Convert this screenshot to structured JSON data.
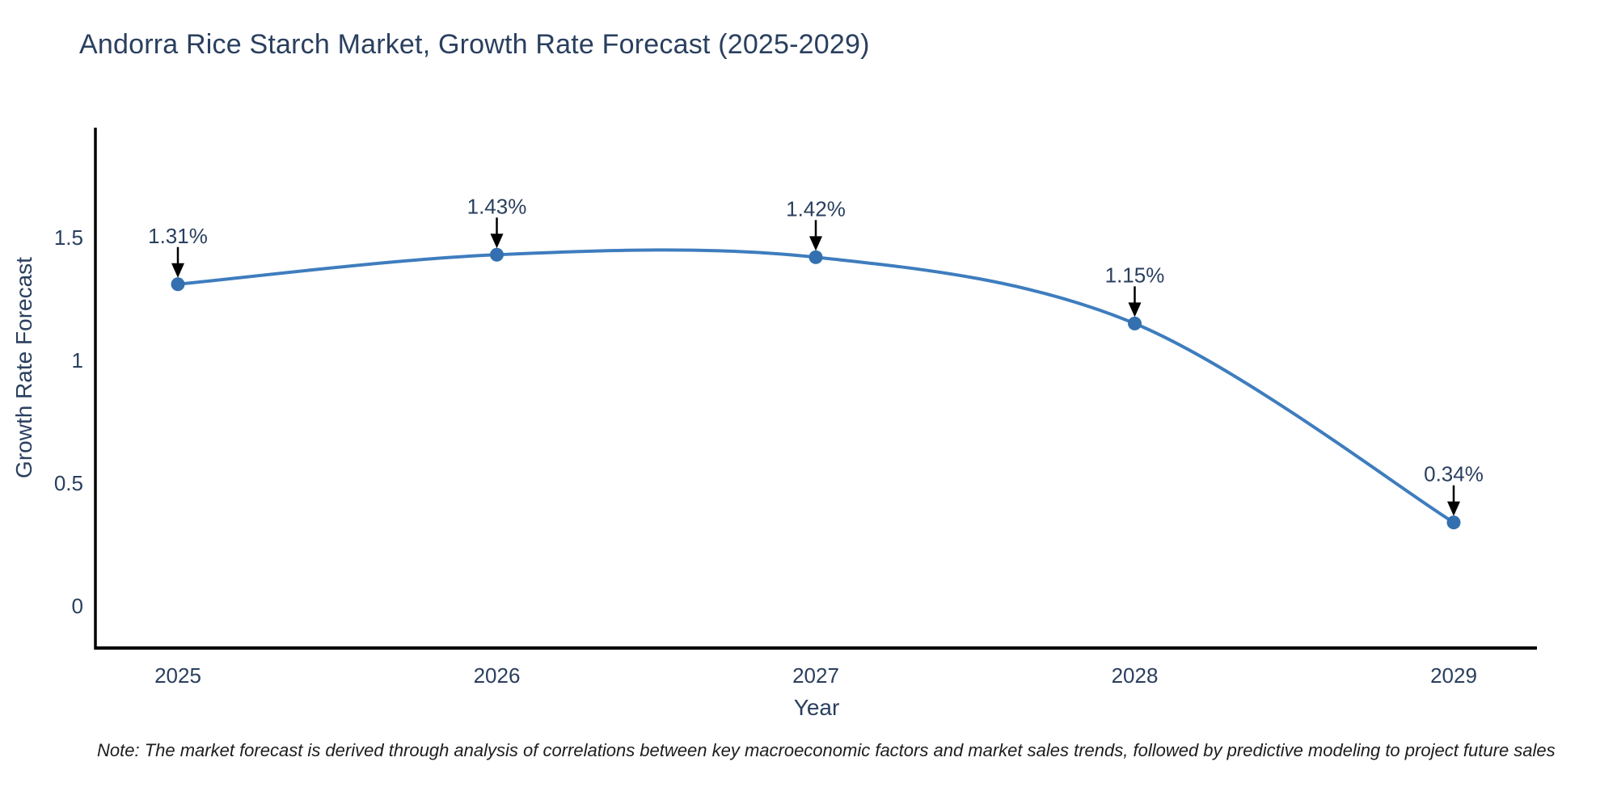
{
  "chart_data": {
    "type": "line",
    "title": "Andorra Rice Starch Market, Growth Rate Forecast (2025-2029)",
    "xlabel": "Year",
    "ylabel": "Growth Rate Forecast",
    "categories": [
      "2025",
      "2026",
      "2027",
      "2028",
      "2029"
    ],
    "values": [
      1.31,
      1.43,
      1.42,
      1.15,
      0.34
    ],
    "point_labels": [
      "1.31%",
      "1.43%",
      "1.42%",
      "1.15%",
      "0.34%"
    ],
    "series_name": "Growth Rate Forecast",
    "y_ticks": [
      0,
      0.5,
      1,
      1.5
    ],
    "y_tick_labels": [
      "0",
      "0.5",
      "1",
      "1.5"
    ],
    "ylim": [
      -0.17,
      1.95
    ],
    "line_shape": "spline",
    "grid": false,
    "legend_position": "none",
    "colors": {
      "line": "#3E7DBE",
      "marker": "#3470AF",
      "axis": "#000000",
      "text": "#2a3f5f",
      "arrow": "#000000",
      "background": "#ffffff"
    }
  },
  "note": "Note: The market forecast is derived through analysis of correlations between key macroeconomic factors and market sales trends, followed by predictive modeling to project future sales"
}
